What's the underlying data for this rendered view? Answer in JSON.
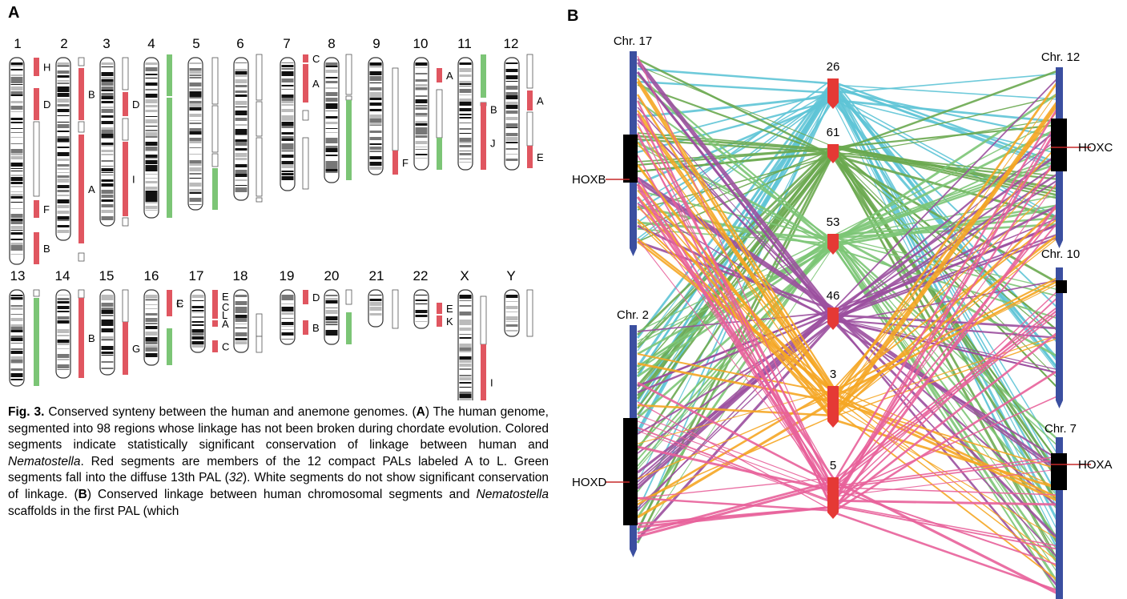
{
  "panel_a": {
    "letter": "A",
    "chromosomes": [
      {
        "label": "1",
        "segments": [
          {
            "c": "red",
            "l": "H"
          },
          {
            "c": "red",
            "l": "D"
          },
          {
            "c": "white",
            "l": ""
          },
          {
            "c": "red",
            "l": "F"
          },
          {
            "c": "red",
            "l": "B"
          }
        ]
      },
      {
        "label": "2",
        "segments": [
          {
            "c": "white",
            "l": ""
          },
          {
            "c": "red",
            "l": "B"
          },
          {
            "c": "white",
            "l": ""
          },
          {
            "c": "red",
            "l": "A"
          },
          {
            "c": "white",
            "l": ""
          }
        ]
      },
      {
        "label": "3",
        "segments": [
          {
            "c": "white",
            "l": ""
          },
          {
            "c": "red",
            "l": "D"
          },
          {
            "c": "white",
            "l": ""
          },
          {
            "c": "red",
            "l": "I"
          },
          {
            "c": "white",
            "l": ""
          }
        ]
      },
      {
        "label": "4",
        "segments": [
          {
            "c": "green",
            "l": ""
          },
          {
            "c": "green",
            "l": ""
          }
        ]
      },
      {
        "label": "5",
        "segments": [
          {
            "c": "white",
            "l": ""
          },
          {
            "c": "white",
            "l": ""
          },
          {
            "c": "white",
            "l": ""
          },
          {
            "c": "green",
            "l": ""
          }
        ]
      },
      {
        "label": "6",
        "segments": [
          {
            "c": "white",
            "l": ""
          },
          {
            "c": "white",
            "l": ""
          },
          {
            "c": "white",
            "l": ""
          },
          {
            "c": "white",
            "l": ""
          }
        ]
      },
      {
        "label": "7",
        "segments": [
          {
            "c": "red",
            "l": "C"
          },
          {
            "c": "red",
            "l": "A"
          },
          {
            "c": "white",
            "l": ""
          },
          {
            "c": "white",
            "l": ""
          }
        ]
      },
      {
        "label": "8",
        "segments": [
          {
            "c": "white",
            "l": ""
          },
          {
            "c": "white",
            "l": ""
          },
          {
            "c": "green",
            "l": ""
          }
        ]
      },
      {
        "label": "9",
        "segments": [
          {
            "c": "white",
            "l": ""
          },
          {
            "c": "red",
            "l": "F"
          }
        ]
      },
      {
        "label": "10",
        "segments": [
          {
            "c": "red",
            "l": "A"
          },
          {
            "c": "white",
            "l": ""
          },
          {
            "c": "green",
            "l": ""
          }
        ]
      },
      {
        "label": "11",
        "segments": [
          {
            "c": "green",
            "l": ""
          },
          {
            "c": "white",
            "l": ""
          },
          {
            "c": "red",
            "l": "B"
          },
          {
            "c": "red",
            "l": "J"
          }
        ]
      },
      {
        "label": "12",
        "segments": [
          {
            "c": "white",
            "l": ""
          },
          {
            "c": "red",
            "l": "A"
          },
          {
            "c": "white",
            "l": ""
          },
          {
            "c": "red",
            "l": "E"
          }
        ]
      },
      {
        "label": "13",
        "segments": [
          {
            "c": "white",
            "l": ""
          },
          {
            "c": "green",
            "l": ""
          }
        ]
      },
      {
        "label": "14",
        "segments": [
          {
            "c": "white",
            "l": ""
          },
          {
            "c": "red",
            "l": "B"
          }
        ]
      },
      {
        "label": "15",
        "segments": [
          {
            "c": "white",
            "l": ""
          },
          {
            "c": "red",
            "l": "G"
          }
        ]
      },
      {
        "label": "16",
        "segments": [
          {
            "c": "red",
            "l": "C"
          },
          {
            "c": "red",
            "l": "E"
          },
          {
            "c": "green",
            "l": ""
          }
        ]
      },
      {
        "label": "17",
        "segments": [
          {
            "c": "red",
            "l": "E"
          },
          {
            "c": "red",
            "l": "C"
          },
          {
            "c": "red",
            "l": "L"
          },
          {
            "c": "red",
            "l": "A"
          },
          {
            "c": "red",
            "l": "C"
          }
        ]
      },
      {
        "label": "18",
        "segments": [
          {
            "c": "white",
            "l": ""
          },
          {
            "c": "white",
            "l": ""
          }
        ]
      },
      {
        "label": "19",
        "segments": [
          {
            "c": "red",
            "l": "D"
          },
          {
            "c": "red",
            "l": "B"
          }
        ]
      },
      {
        "label": "20",
        "segments": [
          {
            "c": "white",
            "l": ""
          },
          {
            "c": "green",
            "l": ""
          }
        ]
      },
      {
        "label": "21",
        "segments": [
          {
            "c": "white",
            "l": ""
          }
        ]
      },
      {
        "label": "22",
        "segments": [
          {
            "c": "red",
            "l": "E"
          },
          {
            "c": "red",
            "l": "K"
          }
        ]
      },
      {
        "label": "X",
        "segments": [
          {
            "c": "white",
            "l": ""
          },
          {
            "c": "red",
            "l": "I"
          }
        ]
      },
      {
        "label": "Y",
        "segments": [
          {
            "c": "white",
            "l": ""
          }
        ]
      }
    ]
  },
  "panel_b": {
    "letter": "B",
    "human_left": [
      {
        "name": "Chr. 17",
        "gene": "HOXB"
      },
      {
        "name": "Chr. 2",
        "gene": "HOXD"
      }
    ],
    "human_right": [
      {
        "name": "Chr. 12",
        "gene": "HOXC"
      },
      {
        "name": "Chr. 10",
        "gene": ""
      },
      {
        "name": "Chr. 7",
        "gene": "HOXA"
      }
    ],
    "scaffolds": [
      "26",
      "61",
      "53",
      "46",
      "3",
      "5"
    ],
    "colors": {
      "cyan": "#5ec4d6",
      "green": "#6aa84f",
      "lightgreen": "#7cc576",
      "purple": "#9b4f9e",
      "orange": "#f5a623",
      "pink": "#e8609a",
      "red": "#e53935",
      "blue": "#3b4fa0"
    }
  },
  "caption": {
    "fig": "Fig. 3.",
    "title": "Conserved synteny between the human and anemone genomes. (",
    "a_lab": "A",
    "t1": ") The human genome, segmented into 98 regions whose linkage has not been broken during chordate evolution. Colored segments indicate statistically significant conservation of linkage between human and ",
    "nem1": "Nematostella",
    "t2": ". Red segments are members of the 12 compact PALs labeled A to L. Green segments fall into the diffuse 13th PAL (",
    "ref": "32",
    "t3": "). White segments do not show significant conservation of linkage. (",
    "b_lab": "B",
    "t4": ") Conserved linkage between human chromosomal segments and ",
    "nem2": "Nematostella",
    "t5": " scaffolds in the first PAL (which"
  }
}
